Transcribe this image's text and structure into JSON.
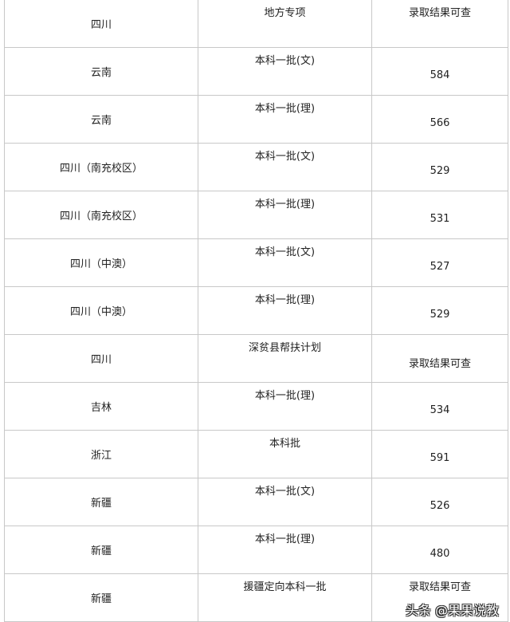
{
  "rows": [
    {
      "region": "四川",
      "batch": "地方专项",
      "score": "录取结果可查"
    },
    {
      "region": "云南",
      "batch": "本科一批(文)",
      "score": "584"
    },
    {
      "region": "云南",
      "batch": "本科一批(理)",
      "score": "566"
    },
    {
      "region": "四川（南充校区）",
      "batch": "本科一批(文)",
      "score": "529"
    },
    {
      "region": "四川（南充校区）",
      "batch": "本科一批(理)",
      "score": "531"
    },
    {
      "region": "四川（中澳）",
      "batch": "本科一批(文)",
      "score": "527"
    },
    {
      "region": "四川（中澳）",
      "batch": "本科一批(理)",
      "score": "529"
    },
    {
      "region": "四川",
      "batch": "深贫县帮扶计划",
      "score": "录取结果可查"
    },
    {
      "region": "吉林",
      "batch": "本科一批(理)",
      "score": "534"
    },
    {
      "region": "浙江",
      "batch": "本科批",
      "score": "591"
    },
    {
      "region": "新疆",
      "batch": "本科一批(文)",
      "score": "526"
    },
    {
      "region": "新疆",
      "batch": "本科一批(理)",
      "score": "480"
    },
    {
      "region": "新疆",
      "batch": "援疆定向本科一批",
      "score": "录取结果可查"
    }
  ],
  "watermark": "头条 @果果说教"
}
